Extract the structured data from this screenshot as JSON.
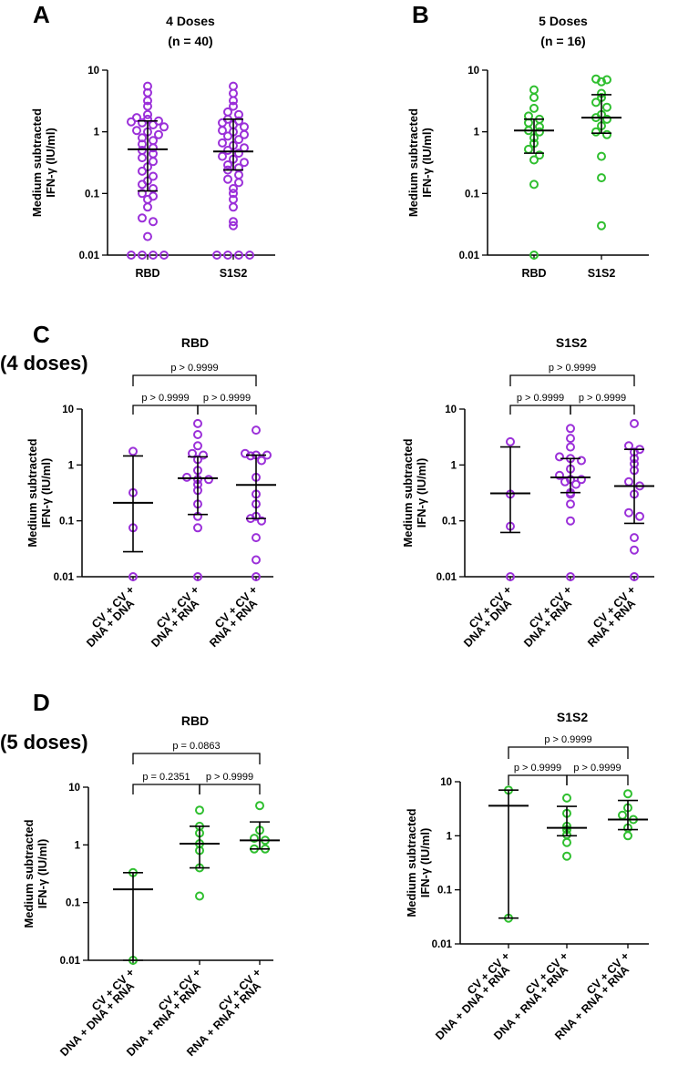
{
  "panel_labels": {
    "a": "A",
    "b": "B",
    "c": "C",
    "d": "D"
  },
  "dose_labels": {
    "c": "(4 doses)",
    "d": "(5 doses)"
  },
  "colors": {
    "purple": "#9b30d9",
    "green": "#2fbf2f"
  },
  "chart_data": [
    {
      "id": "A",
      "type": "scatter",
      "title": "4 Doses",
      "subtitle": "(n = 40)",
      "ylabel_line1": "Medium subtracted",
      "ylabel_line2": "IFN-γ (IU/ml)",
      "yscale": "log",
      "ylim": [
        0.01,
        10
      ],
      "yticks": [
        "0.01",
        "0.1",
        "1",
        "10"
      ],
      "color": "purple",
      "groups": [
        {
          "label": "RBD",
          "median": 0.52,
          "q1": 0.11,
          "q3": 1.5,
          "points": [
            5.5,
            4.3,
            3.2,
            2.6,
            1.9,
            1.7,
            1.6,
            1.5,
            1.45,
            1.4,
            1.3,
            1.2,
            1.05,
            1.0,
            0.9,
            0.8,
            0.72,
            0.63,
            0.55,
            0.5,
            0.44,
            0.38,
            0.33,
            0.27,
            0.23,
            0.19,
            0.16,
            0.14,
            0.12,
            0.1,
            0.09,
            0.08,
            0.06,
            0.04,
            0.035,
            0.02,
            0.01,
            0.01,
            0.01,
            0.01
          ]
        },
        {
          "label": "S1S2",
          "median": 0.48,
          "q1": 0.24,
          "q3": 1.6,
          "points": [
            5.5,
            4.2,
            3.2,
            2.6,
            2.1,
            1.9,
            1.6,
            1.5,
            1.4,
            1.3,
            1.2,
            1.05,
            1.0,
            0.9,
            0.85,
            0.75,
            0.66,
            0.6,
            0.55,
            0.5,
            0.45,
            0.4,
            0.36,
            0.32,
            0.29,
            0.26,
            0.24,
            0.2,
            0.17,
            0.15,
            0.12,
            0.1,
            0.08,
            0.06,
            0.035,
            0.03,
            0.01,
            0.01,
            0.01,
            0.01
          ]
        }
      ]
    },
    {
      "id": "B",
      "type": "scatter",
      "title": "5 Doses",
      "subtitle": "(n = 16)",
      "ylabel_line1": "Medium subtracted",
      "ylabel_line2": "IFN-γ (IU/ml)",
      "yscale": "log",
      "ylim": [
        0.01,
        10
      ],
      "yticks": [
        "0.01",
        "0.1",
        "1",
        "10"
      ],
      "color": "green",
      "groups": [
        {
          "label": "RBD",
          "median": 1.05,
          "q1": 0.45,
          "q3": 1.6,
          "points": [
            4.8,
            3.6,
            2.4,
            1.8,
            1.6,
            1.4,
            1.2,
            1.05,
            1.0,
            0.8,
            0.65,
            0.52,
            0.42,
            0.35,
            0.14,
            0.01
          ]
        },
        {
          "label": "S1S2",
          "median": 1.7,
          "q1": 0.95,
          "q3": 4.0,
          "points": [
            7.2,
            7.0,
            6.5,
            4.2,
            3.6,
            3.0,
            2.5,
            1.9,
            1.7,
            1.6,
            1.25,
            1.0,
            0.9,
            0.4,
            0.18,
            0.03
          ]
        }
      ]
    },
    {
      "id": "C-RBD",
      "type": "scatter",
      "title": "RBD",
      "ylabel_line1": "Medium subtracted",
      "ylabel_line2": "IFN-γ (IU/ml)",
      "yscale": "log",
      "ylim": [
        0.01,
        10
      ],
      "yticks": [
        "0.01",
        "0.1",
        "1",
        "10"
      ],
      "color": "purple",
      "pvalues": [
        {
          "from": 0,
          "to": 2,
          "label": "p > 0.9999"
        },
        {
          "from": 0,
          "to": 1,
          "label": "p > 0.9999"
        },
        {
          "from": 1,
          "to": 2,
          "label": "p > 0.9999"
        }
      ],
      "groups": [
        {
          "label_line1": "CV + CV +",
          "label_line2": "DNA + DNA",
          "median": 0.21,
          "q1": 0.028,
          "q3": 1.45,
          "points": [
            1.75,
            0.32,
            0.075,
            0.01
          ]
        },
        {
          "label_line1": "CV + CV +",
          "label_line2": "DNA + RNA",
          "median": 0.58,
          "q1": 0.13,
          "q3": 1.4,
          "points": [
            5.5,
            3.5,
            2.2,
            1.6,
            1.5,
            1.25,
            0.8,
            0.6,
            0.55,
            0.55,
            0.45,
            0.35,
            0.2,
            0.12,
            0.075,
            0.01
          ]
        },
        {
          "label_line1": "CV + CV +",
          "label_line2": "RNA + RNA",
          "median": 0.44,
          "q1": 0.11,
          "q3": 1.5,
          "points": [
            4.2,
            1.6,
            1.5,
            1.5,
            1.45,
            1.2,
            0.6,
            0.3,
            0.2,
            0.12,
            0.11,
            0.1,
            0.05,
            0.02,
            0.01
          ]
        }
      ]
    },
    {
      "id": "C-S1S2",
      "type": "scatter",
      "title": "S1S2",
      "ylabel_line1": "Medium subtracted",
      "ylabel_line2": "IFN-γ (IU/ml)",
      "yscale": "log",
      "ylim": [
        0.01,
        10
      ],
      "yticks": [
        "0.01",
        "0.1",
        "1",
        "10"
      ],
      "color": "purple",
      "pvalues": [
        {
          "from": 0,
          "to": 2,
          "label": "p > 0.9999"
        },
        {
          "from": 0,
          "to": 1,
          "label": "p > 0.9999"
        },
        {
          "from": 1,
          "to": 2,
          "label": "p > 0.9999"
        }
      ],
      "groups": [
        {
          "label_line1": "CV + CV +",
          "label_line2": "DNA + DNA",
          "median": 0.31,
          "q1": 0.062,
          "q3": 2.1,
          "points": [
            2.6,
            0.3,
            0.08,
            0.01
          ]
        },
        {
          "label_line1": "CV + CV +",
          "label_line2": "DNA + RNA",
          "median": 0.6,
          "q1": 0.32,
          "q3": 1.3,
          "points": [
            4.5,
            3.0,
            2.1,
            1.4,
            1.3,
            1.2,
            0.85,
            0.65,
            0.55,
            0.55,
            0.5,
            0.45,
            0.32,
            0.3,
            0.2,
            0.1,
            0.01
          ]
        },
        {
          "label_line1": "CV + CV +",
          "label_line2": "RNA + RNA",
          "median": 0.42,
          "q1": 0.09,
          "q3": 1.9,
          "points": [
            5.5,
            2.2,
            1.9,
            1.7,
            1.3,
            1.05,
            0.8,
            0.5,
            0.42,
            0.3,
            0.14,
            0.12,
            0.05,
            0.03,
            0.01
          ]
        }
      ]
    },
    {
      "id": "D-RBD",
      "type": "scatter",
      "title": "RBD",
      "ylabel_line1": "Medium subtracted",
      "ylabel_line2": "IFN-γ (IU/ml)",
      "yscale": "log",
      "ylim": [
        0.01,
        10
      ],
      "yticks": [
        "0.01",
        "0.1",
        "1",
        "10"
      ],
      "color": "green",
      "pvalues": [
        {
          "from": 0,
          "to": 2,
          "label": "p = 0.0863"
        },
        {
          "from": 0,
          "to": 1,
          "label": "p = 0.2351"
        },
        {
          "from": 1,
          "to": 2,
          "label": "p > 0.9999"
        }
      ],
      "groups": [
        {
          "label_line1": "CV + CV +",
          "label_line2": "DNA + DNA + RNA",
          "median": 0.17,
          "q1": 0.01,
          "q3": 0.33,
          "points": [
            0.33,
            0.01
          ]
        },
        {
          "label_line1": "CV + CV +",
          "label_line2": "DNA + RNA + RNA",
          "median": 1.05,
          "q1": 0.4,
          "q3": 2.1,
          "points": [
            4.0,
            2.1,
            1.6,
            1.05,
            0.8,
            0.4,
            0.13
          ]
        },
        {
          "label_line1": "CV + CV +",
          "label_line2": "RNA + RNA + RNA",
          "median": 1.2,
          "q1": 0.85,
          "q3": 2.5,
          "points": [
            4.8,
            1.8,
            1.3,
            1.2,
            0.85,
            0.85
          ]
        }
      ]
    },
    {
      "id": "D-S1S2",
      "type": "scatter",
      "title": "S1S2",
      "ylabel_line1": "Medium subtracted",
      "ylabel_line2": "IFN-γ (IU/ml)",
      "yscale": "log",
      "ylim": [
        0.01,
        10
      ],
      "yticks": [
        "0.01",
        "0.1",
        "1",
        "10"
      ],
      "color": "green",
      "pvalues": [
        {
          "from": 0,
          "to": 2,
          "label": "p > 0.9999"
        },
        {
          "from": 0,
          "to": 1,
          "label": "p > 0.9999"
        },
        {
          "from": 1,
          "to": 2,
          "label": "p > 0.9999"
        }
      ],
      "groups": [
        {
          "label_line1": "CV + CV +",
          "label_line2": "DNA + DNA + RNA",
          "median": 3.6,
          "q1": 0.03,
          "q3": 7.0,
          "points": [
            7.0,
            0.03
          ]
        },
        {
          "label_line1": "CV + CV +",
          "label_line2": "DNA + RNA + RNA",
          "median": 1.4,
          "q1": 1.0,
          "q3": 3.5,
          "points": [
            5.0,
            2.6,
            1.5,
            1.3,
            1.05,
            0.75,
            0.42
          ]
        },
        {
          "label_line1": "CV + CV +",
          "label_line2": "RNA + RNA + RNA",
          "median": 2.0,
          "q1": 1.3,
          "q3": 4.5,
          "points": [
            6.0,
            3.3,
            2.4,
            2.0,
            1.4,
            1.0
          ]
        }
      ]
    }
  ]
}
